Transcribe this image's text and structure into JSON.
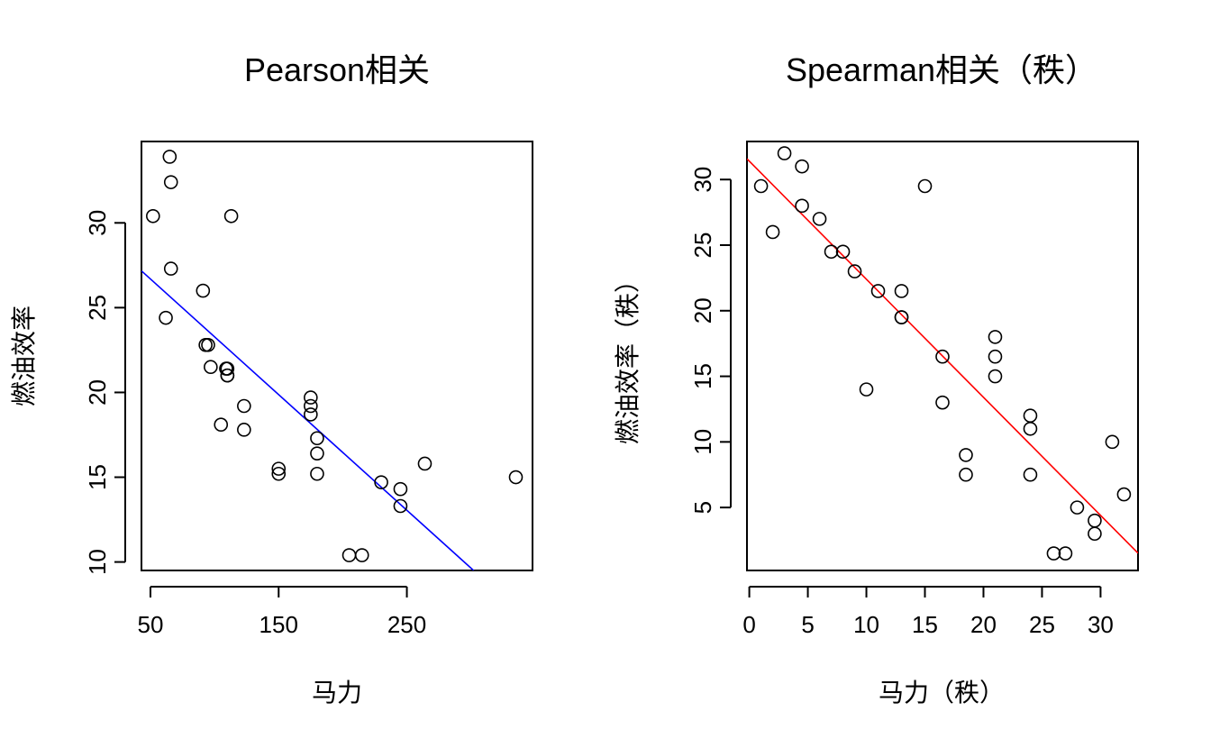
{
  "chart_data": [
    {
      "type": "scatter",
      "title": "Pearson相关",
      "xlabel": "马力",
      "ylabel": "燃油效率",
      "xlim": [
        43,
        348
      ],
      "ylim": [
        9.5,
        34.8
      ],
      "xticks": [
        50,
        150,
        250
      ],
      "yticks": [
        10,
        15,
        20,
        25,
        30
      ],
      "grid": false,
      "fit_line": {
        "color": "#0000ff",
        "intercept": 30.1,
        "slope": -0.0682
      },
      "points": [
        {
          "x": 110,
          "y": 21.0
        },
        {
          "x": 110,
          "y": 21.0
        },
        {
          "x": 93,
          "y": 22.8
        },
        {
          "x": 110,
          "y": 21.4
        },
        {
          "x": 175,
          "y": 18.7
        },
        {
          "x": 105,
          "y": 18.1
        },
        {
          "x": 245,
          "y": 14.3
        },
        {
          "x": 62,
          "y": 24.4
        },
        {
          "x": 95,
          "y": 22.8
        },
        {
          "x": 123,
          "y": 19.2
        },
        {
          "x": 123,
          "y": 17.8
        },
        {
          "x": 180,
          "y": 16.4
        },
        {
          "x": 180,
          "y": 17.3
        },
        {
          "x": 180,
          "y": 15.2
        },
        {
          "x": 205,
          "y": 10.4
        },
        {
          "x": 215,
          "y": 10.4
        },
        {
          "x": 230,
          "y": 14.7
        },
        {
          "x": 66,
          "y": 32.4
        },
        {
          "x": 52,
          "y": 30.4
        },
        {
          "x": 65,
          "y": 33.9
        },
        {
          "x": 97,
          "y": 21.5
        },
        {
          "x": 150,
          "y": 15.5
        },
        {
          "x": 150,
          "y": 15.2
        },
        {
          "x": 245,
          "y": 13.3
        },
        {
          "x": 175,
          "y": 19.2
        },
        {
          "x": 66,
          "y": 27.3
        },
        {
          "x": 91,
          "y": 26.0
        },
        {
          "x": 113,
          "y": 30.4
        },
        {
          "x": 264,
          "y": 15.8
        },
        {
          "x": 175,
          "y": 19.7
        },
        {
          "x": 335,
          "y": 15.0
        },
        {
          "x": 109,
          "y": 21.4
        }
      ]
    },
    {
      "type": "scatter",
      "title": "Spearman相关（秩）",
      "xlabel": "马力（秩）",
      "ylabel": "燃油效率（秩）",
      "xlim": [
        -0.2,
        33.2
      ],
      "ylim": [
        0.2,
        32.9
      ],
      "xticks": [
        0,
        5,
        10,
        15,
        20,
        25,
        30
      ],
      "yticks": [
        5,
        10,
        15,
        20,
        25,
        30
      ],
      "grid": false,
      "fit_line": {
        "color": "#ff0000",
        "intercept": 31.4,
        "slope": -0.9
      },
      "points": [
        {
          "x": 1,
          "y": 29.5
        },
        {
          "x": 2,
          "y": 26
        },
        {
          "x": 3,
          "y": 32
        },
        {
          "x": 4.5,
          "y": 31
        },
        {
          "x": 4.5,
          "y": 28
        },
        {
          "x": 6,
          "y": 27
        },
        {
          "x": 7,
          "y": 24.5
        },
        {
          "x": 8,
          "y": 24.5
        },
        {
          "x": 9,
          "y": 23
        },
        {
          "x": 10,
          "y": 14
        },
        {
          "x": 11,
          "y": 21.5
        },
        {
          "x": 13,
          "y": 21.5
        },
        {
          "x": 13,
          "y": 19.5
        },
        {
          "x": 13,
          "y": 19.5
        },
        {
          "x": 15,
          "y": 29.5
        },
        {
          "x": 16.5,
          "y": 16.5
        },
        {
          "x": 16.5,
          "y": 13
        },
        {
          "x": 18.5,
          "y": 9
        },
        {
          "x": 18.5,
          "y": 7.5
        },
        {
          "x": 21,
          "y": 18
        },
        {
          "x": 21,
          "y": 16.5
        },
        {
          "x": 21,
          "y": 15
        },
        {
          "x": 24,
          "y": 12
        },
        {
          "x": 24,
          "y": 11
        },
        {
          "x": 24,
          "y": 7.5
        },
        {
          "x": 26,
          "y": 1.5
        },
        {
          "x": 27,
          "y": 1.5
        },
        {
          "x": 28,
          "y": 5
        },
        {
          "x": 29.5,
          "y": 4
        },
        {
          "x": 29.5,
          "y": 3
        },
        {
          "x": 31,
          "y": 10
        },
        {
          "x": 32,
          "y": 6
        }
      ]
    }
  ]
}
